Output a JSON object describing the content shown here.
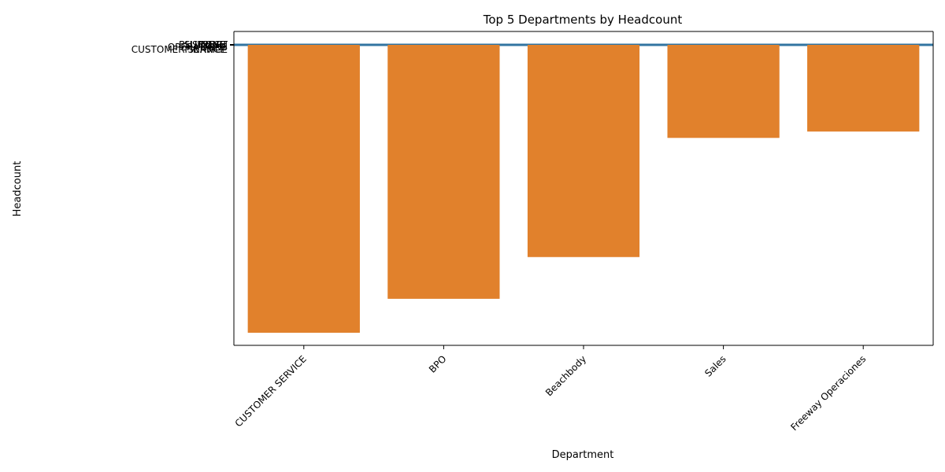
{
  "chart_data": {
    "type": "bar",
    "title": "Top 5 Departments by Headcount",
    "xlabel": "Department",
    "ylabel": "Headcount",
    "categories": [
      "CUSTOMER SERVICE",
      "BPO",
      "Beachbody",
      "Sales",
      "Freeway Operaciones"
    ],
    "values": [
      1000,
      882,
      737,
      323,
      301
    ],
    "ylim": [
      1044,
      0
    ],
    "y_inverted": true,
    "bar_color": "#e1812c",
    "line_color": "#3274a1",
    "overlapping_tick_labels": [
      "CONFI",
      "TELE",
      "CUSTOMER SERVICE",
      "BUSINESS",
      "OPERATIONS",
      "FINANCE",
      "SUPPORT"
    ],
    "grid": false,
    "legend": "none"
  }
}
